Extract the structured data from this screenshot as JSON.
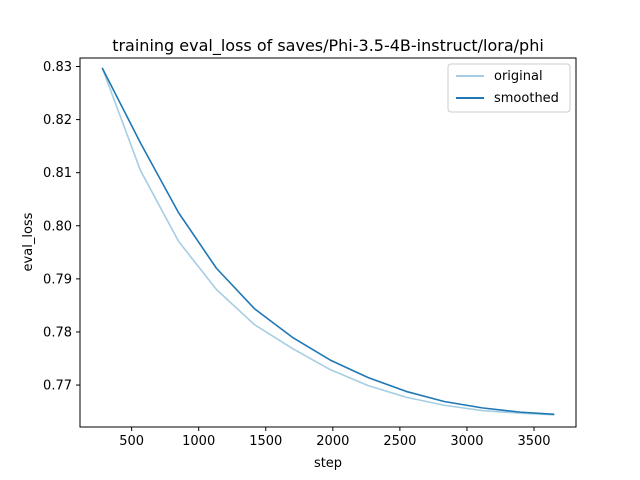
{
  "chart_data": {
    "type": "line",
    "title": "training eval_loss of saves/Phi-3.5-4B-instruct/lora/phi",
    "xlabel": "step",
    "ylabel": "eval_loss",
    "xlim": [
      115,
      3813
    ],
    "ylim": [
      0.7621,
      0.8316
    ],
    "xticks": [
      500,
      1000,
      1500,
      2000,
      2500,
      3000,
      3500
    ],
    "xtick_labels": [
      "500",
      "1000",
      "1500",
      "2000",
      "2500",
      "3000",
      "3500"
    ],
    "yticks": [
      0.77,
      0.78,
      0.79,
      0.8,
      0.81,
      0.82,
      0.83
    ],
    "ytick_labels": [
      "0.77",
      "0.78",
      "0.79",
      "0.80",
      "0.81",
      "0.82",
      "0.83"
    ],
    "grid": false,
    "legend_position": "top-right",
    "x": [
      283,
      566,
      849,
      1132,
      1415,
      1698,
      1981,
      2264,
      2547,
      2830,
      3113,
      3396,
      3645
    ],
    "series": [
      {
        "name": "original",
        "color": "#a6cee3",
        "values": [
          0.8296,
          0.8104,
          0.7971,
          0.788,
          0.7814,
          0.7769,
          0.7729,
          0.7699,
          0.7677,
          0.7662,
          0.7652,
          0.7647,
          0.7644
        ]
      },
      {
        "name": "smoothed",
        "color": "#1f78b4",
        "values": [
          0.8296,
          0.8156,
          0.8025,
          0.792,
          0.7844,
          0.779,
          0.7747,
          0.7714,
          0.7688,
          0.7669,
          0.7657,
          0.7649,
          0.7645
        ]
      }
    ]
  }
}
